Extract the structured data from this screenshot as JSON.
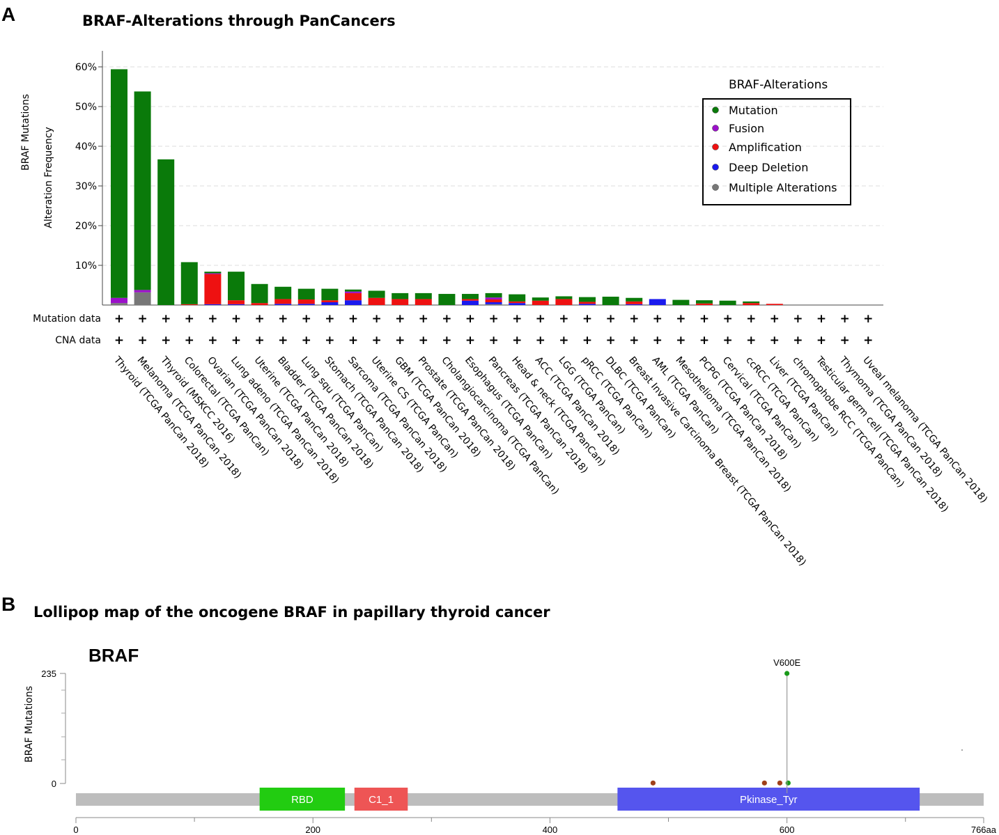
{
  "panel_a": {
    "letter": "A",
    "title": "BRAF-Alterations through PanCancers",
    "ylabel_main": "Alteration Frequency",
    "ylabel_overlap": "BRAF Mutations",
    "row_labels": [
      "Mutation data",
      "CNA data"
    ],
    "row_mark": "+",
    "legend": {
      "title": "BRAF-Alterations",
      "items": [
        {
          "label": "Mutation",
          "color": "#0a7a0a"
        },
        {
          "label": "Fusion",
          "color": "#9b10c9"
        },
        {
          "label": "Amplification",
          "color": "#ee1111"
        },
        {
          "label": "Deep Deletion",
          "color": "#1a1aee"
        },
        {
          "label": "Multiple Alterations",
          "color": "#777777"
        }
      ]
    }
  },
  "panel_b": {
    "letter": "B",
    "title": "Lollipop map of the oncogene BRAF in papillary thyroid cancer",
    "gene": "BRAF",
    "ylabel": "BRAF Mutations",
    "y_ticks": [
      "235",
      "0"
    ],
    "y_max": 235,
    "protein_length": 766,
    "x_ticks": [
      {
        "v": 0,
        "label": "0"
      },
      {
        "v": 200,
        "label": "200"
      },
      {
        "v": 400,
        "label": "400"
      },
      {
        "v": 600,
        "label": "600"
      },
      {
        "v": 766,
        "label": "766aa"
      }
    ],
    "domains": [
      {
        "name": "RBD",
        "start": 155,
        "end": 227,
        "color": "#22cc11"
      },
      {
        "name": "C1_1",
        "start": 235,
        "end": 280,
        "color": "#ee5555"
      },
      {
        "name": "Pkinase_Tyr",
        "start": 457,
        "end": 712,
        "color": "#5555ee"
      }
    ],
    "lollipops": [
      {
        "pos": 487,
        "count": 1,
        "color": "#a0401a",
        "label": ""
      },
      {
        "pos": 581,
        "count": 1,
        "color": "#a0401a",
        "label": ""
      },
      {
        "pos": 594,
        "count": 1,
        "color": "#a0401a",
        "label": ""
      },
      {
        "pos": 601,
        "count": 1,
        "color": "#1a9a1a",
        "label": ""
      },
      {
        "pos": 600,
        "count": 235,
        "color": "#1a9a1a",
        "label": "V600E"
      }
    ]
  },
  "chart_data": [
    {
      "type": "bar",
      "stacked": true,
      "title": "BRAF-Alterations through PanCancers",
      "ylabel": "Alteration Frequency",
      "ylim": [
        0,
        64
      ],
      "y_ticks": [
        10,
        20,
        30,
        40,
        50,
        60
      ],
      "y_tick_labels": [
        "10%",
        "20%",
        "30%",
        "40%",
        "50%",
        "60%"
      ],
      "grid": "horizontal dashed",
      "legend_position": "top-right",
      "categories": [
        "Thyroid (TCGA PanCan 2018)",
        "Melanoma (TCGA PanCan 2018)",
        "Thyroid (MSKCC 2016)",
        "Colorectal (TCGA PanCan)",
        "Ovarian (TCGA PanCan 2018)",
        "Lung adeno (TCGA PanCan 2018)",
        "Uterine (TCGA PanCan 2018)",
        "Bladder (TCGA PanCan 2018)",
        "Lung squ (TCGA PanCan)",
        "Stomach (TCGA PanCan 2018)",
        "Sarcoma (TCGA PanCan 2018)",
        "Uterine CS (TCGA PanCan)",
        "GBM (TCGA PanCan 2018)",
        "Prostate (TCGA PanCan 2018)",
        "Cholangiocarcinoma (TCGA PanCan)",
        "Esophagus (TCGA PanCan)",
        "Pancreas (TCGA PanCan 2018)",
        "Head & neck (TCGA PanCan)",
        "ACC (TCGA PanCan 2018)",
        "LGG (TCGA PanCan)",
        "pRCC (TCGA PanCan)",
        "DLBC (TCGA PanCan)",
        "Breast Invasive Carcinoma Breast (TCGA PanCan 2018)",
        "AML (TCGA PanCan)",
        "Mesothelioma (TCGA PanCan 2018)",
        "PCPG (TCGA PanCan 2018)",
        "Cervical (TCGA PanCan)",
        "ccRCC (TCGA PanCan)",
        "Liver (TCGA PanCan)",
        "chromophobe RCC (TCGA PanCan)",
        "Testicular germ cell (TCGA PanCan 2018)",
        "Thymoma (TCGA PanCan 2018)",
        "Uveal melanoma (TCGA PanCan 2018)"
      ],
      "series": [
        {
          "name": "Multiple Alterations",
          "color": "#777777",
          "values": [
            0.5,
            3.2,
            0,
            0,
            0,
            0,
            0,
            0,
            0,
            0,
            0,
            0,
            0,
            0,
            0,
            0,
            0.2,
            0,
            0,
            0,
            0,
            0,
            0,
            0,
            0,
            0,
            0,
            0,
            0,
            0,
            0,
            0,
            0
          ]
        },
        {
          "name": "Deep Deletion",
          "color": "#1a1aee",
          "values": [
            0,
            0,
            0,
            0,
            0.2,
            0.2,
            0,
            0.3,
            0.3,
            0.7,
            1.2,
            0,
            0,
            0,
            0,
            1.1,
            0.5,
            0.5,
            0,
            0,
            0.3,
            0,
            0.2,
            1.5,
            0,
            0,
            0,
            0,
            0,
            0,
            0,
            0,
            0
          ]
        },
        {
          "name": "Amplification",
          "color": "#ee1111",
          "values": [
            0,
            0,
            0,
            0.2,
            7.6,
            1.0,
            0.5,
            1.2,
            1.1,
            0.5,
            1.8,
            1.8,
            1.5,
            1.5,
            0,
            0.4,
            0.7,
            0.4,
            1.1,
            1.5,
            0.5,
            0,
            0.7,
            0,
            0,
            0.4,
            0,
            0.5,
            0.3,
            0,
            0,
            0,
            0
          ]
        },
        {
          "name": "Fusion",
          "color": "#9b10c9",
          "values": [
            1.3,
            0.6,
            0,
            0,
            0.2,
            0,
            0,
            0,
            0,
            0,
            0.4,
            0,
            0,
            0,
            0,
            0,
            0.5,
            0,
            0,
            0,
            0,
            0,
            0,
            0,
            0,
            0,
            0,
            0,
            0,
            0,
            0,
            0,
            0
          ]
        },
        {
          "name": "Mutation",
          "color": "#0a7a0a",
          "values": [
            57.6,
            50.0,
            36.7,
            10.6,
            0.4,
            7.2,
            4.8,
            3.1,
            2.7,
            2.9,
            0.5,
            1.8,
            1.5,
            1.5,
            2.8,
            1.3,
            1.1,
            1.8,
            0.8,
            0.7,
            1.2,
            2.1,
            0.9,
            0,
            1.3,
            0.8,
            1.1,
            0.4,
            0,
            0,
            0,
            0,
            0
          ]
        }
      ]
    },
    {
      "type": "scatter",
      "title": "Lollipop map of the oncogene BRAF in papillary thyroid cancer",
      "ylabel": "BRAF Mutations",
      "xlim": [
        0,
        766
      ],
      "ylim": [
        0,
        235
      ],
      "x": [
        487,
        581,
        594,
        600,
        601
      ],
      "y": [
        1,
        1,
        1,
        235,
        1
      ],
      "annotations": [
        "V600E"
      ]
    }
  ]
}
